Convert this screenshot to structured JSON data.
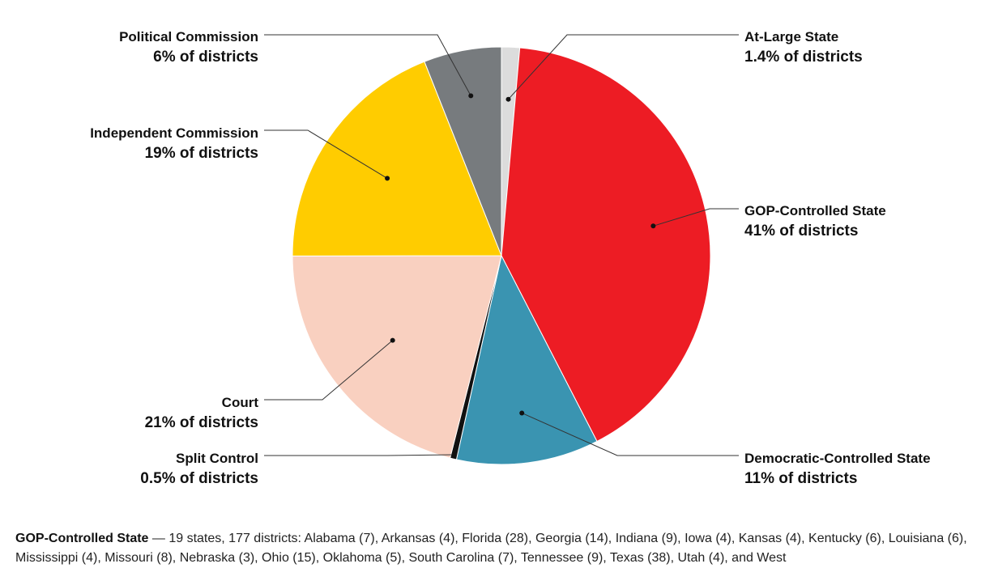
{
  "chart_data": {
    "type": "pie",
    "unit": "% of districts",
    "slices": [
      {
        "key": "at-large",
        "label": "At-Large State",
        "value": 1.4,
        "value_label": "1.4% of districts",
        "color": "#dcdcdc"
      },
      {
        "key": "gop",
        "label": "GOP-Controlled State",
        "value": 41,
        "value_label": "41% of districts",
        "color": "#ed1c24"
      },
      {
        "key": "dem",
        "label": "Democratic-Controlled State",
        "value": 11,
        "value_label": "11% of districts",
        "color": "#3a94b1"
      },
      {
        "key": "split",
        "label": "Split Control",
        "value": 0.5,
        "value_label": "0.5% of districts",
        "color": "#111111"
      },
      {
        "key": "court",
        "label": "Court",
        "value": 21,
        "value_label": "21% of districts",
        "color": "#f9d0c0"
      },
      {
        "key": "independent",
        "label": "Independent Commission",
        "value": 19,
        "value_label": "19% of districts",
        "color": "#ffcc00"
      },
      {
        "key": "political",
        "label": "Political Commission",
        "value": 6,
        "value_label": "6% of districts",
        "color": "#777b7e"
      }
    ]
  },
  "footnote": {
    "title": "GOP-Controlled State",
    "text": " — 19 states, 177 districts: Alabama (7), Arkansas (4), Florida (28), Georgia (14), Indiana (9), Iowa (4), Kansas (4), Kentucky (6), Louisiana (6), Mississippi (4), Missouri (8), Nebraska (3), Ohio (15), Oklahoma (5), South Carolina (7), Tennessee (9), Texas  (38), Utah (4), and West"
  }
}
